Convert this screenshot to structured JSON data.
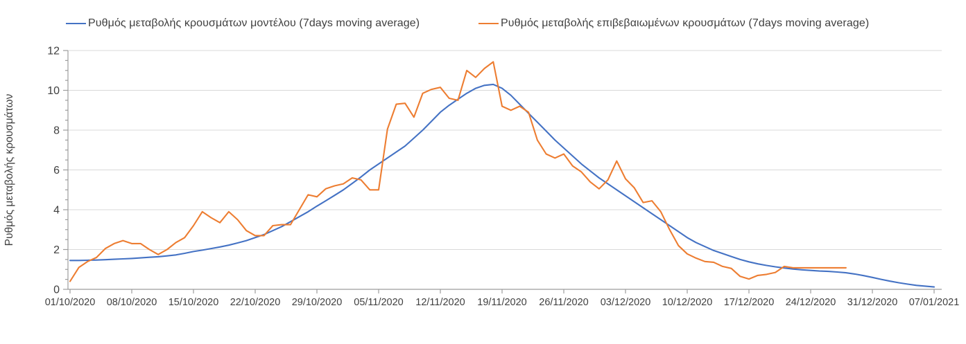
{
  "legend": [
    {
      "label": "Ρυθμός μεταβολής κρουσμάτων μοντέλου (7days moving average)",
      "color": "#4472C4"
    },
    {
      "label": "Ρυθμός μεταβολής επιβεβαιωμένων κρουσμάτων (7days moving average)",
      "color": "#ED7D31"
    }
  ],
  "y_axis": {
    "title": "Ρυθμός μεταβολής κρουσμάτων",
    "tick_labels": [
      "0",
      "2",
      "4",
      "6",
      "8",
      "10",
      "12"
    ]
  },
  "x_axis": {
    "tick_labels": [
      "01/10/2020",
      "08/10/2020",
      "15/10/2020",
      "22/10/2020",
      "29/10/2020",
      "05/11/2020",
      "12/11/2020",
      "19/11/2020",
      "26/11/2020",
      "03/12/2020",
      "10/12/2020",
      "17/12/2020",
      "24/12/2020",
      "31/12/2020",
      "07/01/2021"
    ]
  },
  "colors": {
    "axis_line": "#9c9c9c",
    "gridline": "#d9d9d9",
    "tick_text": "#404040",
    "series_model": "#4472C4",
    "series_confirmed": "#ED7D31"
  },
  "chart_data": {
    "type": "line",
    "title": "",
    "xlabel": "",
    "ylabel": "Ρυθμός μεταβολής κρουσμάτων",
    "ylim": [
      0,
      12
    ],
    "y_major_step": 2,
    "y_minor_step": 0.5,
    "grid": true,
    "legend_position": "top",
    "x_unit": "day",
    "x_start_date": "01/10/2020",
    "x_end_date": "07/01/2021",
    "x_tick_labels": [
      "01/10/2020",
      "08/10/2020",
      "15/10/2020",
      "22/10/2020",
      "29/10/2020",
      "05/11/2020",
      "12/11/2020",
      "19/11/2020",
      "26/11/2020",
      "03/12/2020",
      "10/12/2020",
      "17/12/2020",
      "24/12/2020",
      "31/12/2020",
      "07/01/2021"
    ],
    "x_tick_day_indices": [
      0,
      7,
      14,
      21,
      28,
      35,
      42,
      49,
      56,
      63,
      70,
      77,
      84,
      91,
      98
    ],
    "series": [
      {
        "name": "Ρυθμός μεταβολής κρουσμάτων μοντέλου (7days moving average)",
        "color": "#4472C4",
        "start_day_index": 0,
        "values": [
          1.45,
          1.45,
          1.46,
          1.47,
          1.49,
          1.51,
          1.53,
          1.55,
          1.58,
          1.61,
          1.64,
          1.68,
          1.73,
          1.81,
          1.9,
          1.97,
          2.05,
          2.13,
          2.22,
          2.33,
          2.45,
          2.6,
          2.75,
          2.95,
          3.15,
          3.4,
          3.65,
          3.9,
          4.18,
          4.45,
          4.72,
          5.0,
          5.32,
          5.65,
          6.0,
          6.3,
          6.6,
          6.9,
          7.2,
          7.6,
          8.0,
          8.45,
          8.9,
          9.25,
          9.55,
          9.85,
          10.1,
          10.25,
          10.3,
          10.1,
          9.75,
          9.3,
          8.85,
          8.4,
          7.95,
          7.5,
          7.1,
          6.7,
          6.3,
          5.95,
          5.6,
          5.3,
          5.0,
          4.7,
          4.4,
          4.1,
          3.8,
          3.5,
          3.2,
          2.9,
          2.6,
          2.35,
          2.15,
          1.95,
          1.8,
          1.65,
          1.5,
          1.38,
          1.28,
          1.2,
          1.13,
          1.07,
          1.02,
          0.98,
          0.95,
          0.92,
          0.9,
          0.87,
          0.83,
          0.77,
          0.69,
          0.6,
          0.5,
          0.41,
          0.33,
          0.26,
          0.2,
          0.16,
          0.12
        ]
      },
      {
        "name": "Ρυθμός μεταβολής επιβεβαιωμένων κρουσμάτων (7days moving average)",
        "color": "#ED7D31",
        "start_day_index": 0,
        "values": [
          0.4,
          1.1,
          1.4,
          1.6,
          2.05,
          2.3,
          2.45,
          2.3,
          2.3,
          2.0,
          1.75,
          2.0,
          2.35,
          2.6,
          3.2,
          3.9,
          3.6,
          3.35,
          3.9,
          3.5,
          2.95,
          2.7,
          2.7,
          3.2,
          3.25,
          3.25,
          4.0,
          4.75,
          4.65,
          5.05,
          5.2,
          5.3,
          5.6,
          5.5,
          5.0,
          5.0,
          8.05,
          9.3,
          9.35,
          8.65,
          9.85,
          10.05,
          10.15,
          9.6,
          9.5,
          11.0,
          10.65,
          11.1,
          11.43,
          9.2,
          9.0,
          9.2,
          8.9,
          7.5,
          6.8,
          6.6,
          6.8,
          6.2,
          5.9,
          5.4,
          5.05,
          5.5,
          6.45,
          5.55,
          5.1,
          4.36,
          4.45,
          3.9,
          3.0,
          2.2,
          1.78,
          1.57,
          1.4,
          1.36,
          1.15,
          1.05,
          0.65,
          0.52,
          0.7,
          0.75,
          0.85,
          1.15,
          1.08,
          1.08,
          1.08,
          1.08,
          1.08,
          1.08,
          1.08
        ]
      }
    ]
  }
}
